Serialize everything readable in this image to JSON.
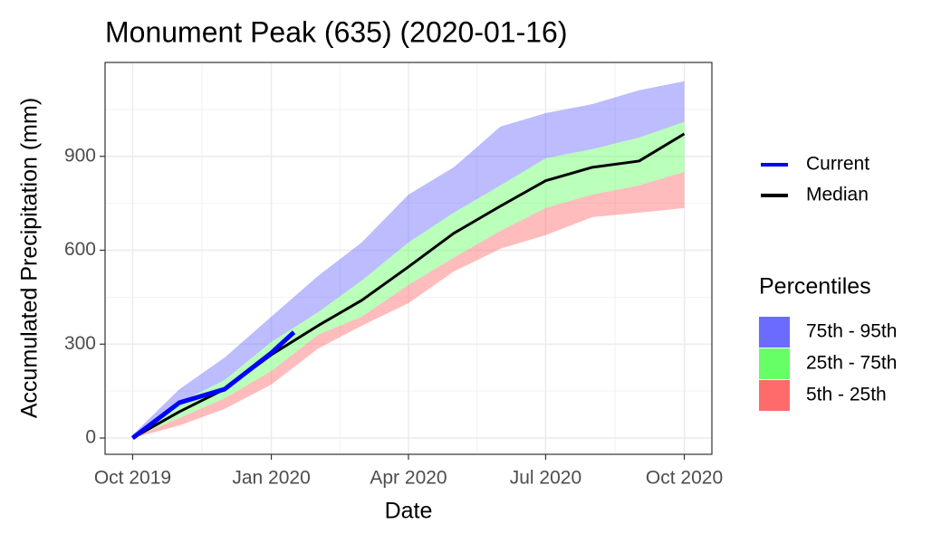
{
  "chart_data": {
    "type": "band",
    "title": "Monument Peak (635) (2020-01-16)",
    "x_label": "Date",
    "y_label": "Accumulated Precipitation (mm)",
    "x": [
      "2019-10",
      "2019-11",
      "2019-12",
      "2020-01",
      "2020-02",
      "2020-03",
      "2020-04",
      "2020-05",
      "2020-06",
      "2020-07",
      "2020-08",
      "2020-09",
      "2020-10"
    ],
    "bands_title": "Percentiles",
    "bands": [
      {
        "name": "75th - 95th",
        "color": "#6b6bff",
        "lower": [
          5,
          113,
          185,
          307,
          402,
          503,
          625,
          720,
          807,
          894,
          923,
          960,
          1010
        ],
        "upper": [
          10,
          156,
          257,
          388,
          518,
          625,
          778,
          865,
          995,
          1038,
          1067,
          1111,
          1140
        ]
      },
      {
        "name": "25th - 75th",
        "color": "#66ff66",
        "lower": [
          0,
          64,
          127,
          214,
          330,
          388,
          489,
          576,
          662,
          735,
          778,
          807,
          850
        ],
        "upper": [
          5,
          113,
          185,
          307,
          402,
          503,
          625,
          720,
          807,
          894,
          923,
          960,
          1010
        ]
      },
      {
        "name": "5th - 25th",
        "color": "#ff6b6b",
        "lower": [
          0,
          40,
          93,
          171,
          286,
          359,
          431,
          532,
          605,
          648,
          706,
          720,
          735
        ],
        "upper": [
          0,
          64,
          127,
          214,
          330,
          388,
          489,
          576,
          662,
          735,
          778,
          807,
          850
        ]
      }
    ],
    "series": [
      {
        "name": "Current",
        "color": "#0000ff",
        "x": [
          "2019-10",
          "2019-11",
          "2019-12",
          "2020-01",
          "2020-01-16"
        ],
        "values": [
          0,
          113,
          156,
          272,
          338
        ]
      },
      {
        "name": "Median",
        "color": "#000000",
        "values": [
          0,
          84,
          156,
          266,
          359,
          440,
          547,
          654,
          741,
          822,
          865,
          885,
          972
        ]
      }
    ],
    "ylim": [
      -52,
      1200
    ],
    "yticks": [
      0,
      300,
      600,
      900
    ],
    "xticks": [
      {
        "value": "2019-10",
        "label": "Oct 2019"
      },
      {
        "value": "2020-01",
        "label": "Jan 2020"
      },
      {
        "value": "2020-04",
        "label": "Apr 2020"
      },
      {
        "value": "2020-07",
        "label": "Jul 2020"
      },
      {
        "value": "2020-10",
        "label": "Oct 2020"
      }
    ],
    "grid": true
  }
}
